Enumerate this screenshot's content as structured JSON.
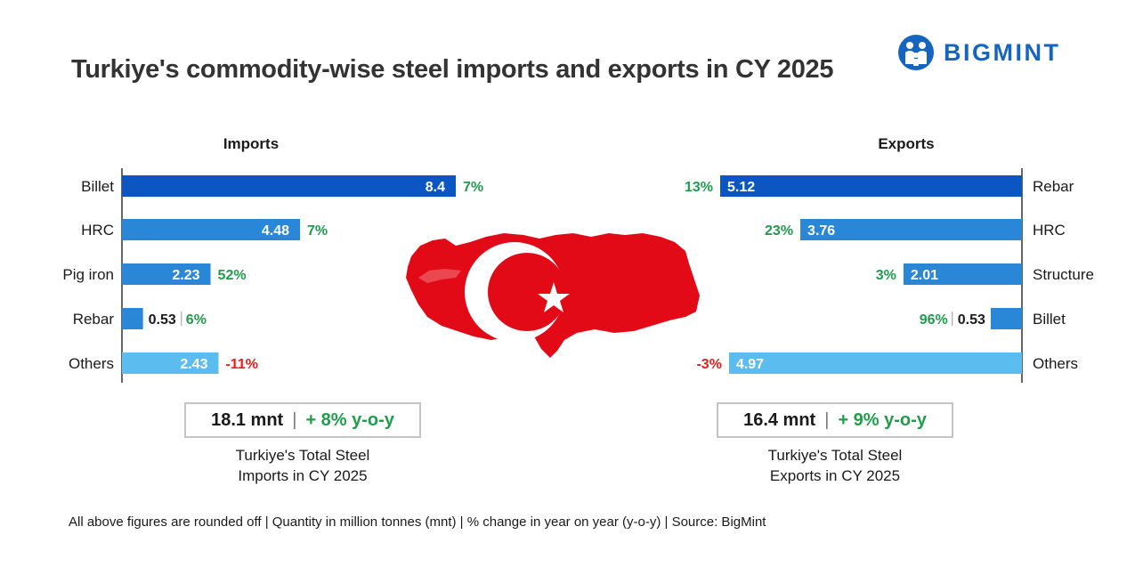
{
  "title": "Turkiye's commodity-wise steel imports and exports in CY 2025",
  "logo": {
    "text": "BIGMINT"
  },
  "colors": {
    "bar_dark": "#0c56c4",
    "bar_mid": "#2a86d6",
    "bar_light": "#5bbcef",
    "positive": "#1f9d4c",
    "negative": "#e02020",
    "flag_red": "#e30a17"
  },
  "chart_data": [
    {
      "type": "bar",
      "orientation": "horizontal",
      "title": "Imports",
      "categories": [
        "Billet",
        "HRC",
        "Pig iron",
        "Rebar",
        "Others"
      ],
      "values": [
        8.4,
        4.48,
        2.23,
        0.53,
        2.43
      ],
      "value_labels": [
        "8.4",
        "4.48",
        "2.23",
        "0.53",
        "2.43"
      ],
      "changes": [
        "7%",
        "7%",
        "52%",
        "6%",
        "-11%"
      ],
      "change_sign": [
        "positive",
        "positive",
        "positive",
        "positive",
        "negative"
      ],
      "bar_colors": [
        "#0c56c4",
        "#2a86d6",
        "#2a86d6",
        "#2a86d6",
        "#5bbcef"
      ],
      "unit": "mnt",
      "xlim": [
        0,
        8.4
      ]
    },
    {
      "type": "bar",
      "orientation": "horizontal",
      "title": "Exports",
      "categories": [
        "Rebar",
        "HRC",
        "Structure",
        "Billet",
        "Others"
      ],
      "values": [
        5.12,
        3.76,
        2.01,
        0.53,
        4.97
      ],
      "value_labels": [
        "5.12",
        "3.76",
        "2.01",
        "0.53",
        "4.97"
      ],
      "changes": [
        "13%",
        "23%",
        "3%",
        "96%",
        "-3%"
      ],
      "change_sign": [
        "positive",
        "positive",
        "positive",
        "positive",
        "negative"
      ],
      "bar_colors": [
        "#0c56c4",
        "#2a86d6",
        "#2a86d6",
        "#2a86d6",
        "#5bbcef"
      ],
      "unit": "mnt",
      "xlim": [
        0,
        5.12
      ]
    }
  ],
  "totals": {
    "imports": {
      "value": "18.1 mnt",
      "change": "+ 8% y-o-y",
      "caption_line1": "Turkiye's Total Steel",
      "caption_line2": "Imports in CY 2025"
    },
    "exports": {
      "value": "16.4 mnt",
      "change": "+ 9% y-o-y",
      "caption_line1": "Turkiye's Total Steel",
      "caption_line2": "Exports in CY 2025"
    }
  },
  "footnote": "All above figures are rounded off | Quantity in million tonnes (mnt) | % change in year on year (y-o-y) | Source: BigMint"
}
